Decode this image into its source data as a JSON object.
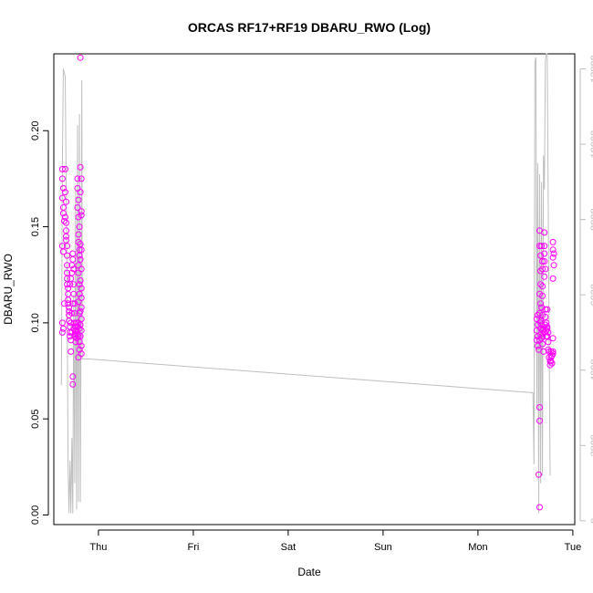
{
  "chart_data": {
    "type": "scatter",
    "title": "ORCAS RF17+RF19 DBARU_RWO (Log)",
    "xlabel": "Date",
    "ylabel": "DBARU_RWO",
    "x_ticks": [
      "Thu",
      "Fri",
      "Sat",
      "Sun",
      "Mon",
      "Tue"
    ],
    "ylim": [
      -0.005,
      0.24
    ],
    "y_ticks": [
      "0.00",
      "0.05",
      "0.10",
      "0.15",
      "0.20"
    ],
    "y_tick_values": [
      0,
      0.05,
      0.1,
      0.15,
      0.2
    ],
    "y2lim": [
      -100,
      12400
    ],
    "y2_ticks": [
      "0",
      "2000",
      "4000",
      "6000",
      "8000",
      "10000",
      "12000"
    ],
    "y2_tick_values": [
      0,
      2000,
      4000,
      6000,
      8000,
      10000,
      12000
    ],
    "x_units": "days since Thu 00:00",
    "xlim": [
      -0.47,
      5.02
    ],
    "colors": {
      "points": "#ff00ff",
      "altitude_line": "#bebebe",
      "axis": "#000000",
      "right_axis": "#bebebe"
    },
    "series": [
      {
        "kind": "points",
        "points": [
          [
            -0.38,
            0.18
          ],
          [
            -0.38,
            0.175
          ],
          [
            -0.37,
            0.17
          ],
          [
            -0.38,
            0.165
          ],
          [
            -0.37,
            0.16
          ],
          [
            -0.37,
            0.157
          ],
          [
            -0.36,
            0.153
          ],
          [
            -0.38,
            0.14
          ],
          [
            -0.37,
            0.137
          ],
          [
            -0.38,
            0.1
          ],
          [
            -0.37,
            0.097
          ],
          [
            -0.38,
            0.095
          ],
          [
            -0.36,
            0.11
          ],
          [
            -0.35,
            0.18
          ],
          [
            -0.35,
            0.168
          ],
          [
            -0.34,
            0.163
          ],
          [
            -0.35,
            0.155
          ],
          [
            -0.34,
            0.152
          ],
          [
            -0.34,
            0.148
          ],
          [
            -0.34,
            0.145
          ],
          [
            -0.34,
            0.143
          ],
          [
            -0.33,
            0.14
          ],
          [
            -0.33,
            0.135
          ],
          [
            -0.33,
            0.13
          ],
          [
            -0.33,
            0.126
          ],
          [
            -0.33,
            0.123
          ],
          [
            -0.33,
            0.12
          ],
          [
            -0.32,
            0.118
          ],
          [
            -0.32,
            0.115
          ],
          [
            -0.32,
            0.112
          ],
          [
            -0.32,
            0.11
          ],
          [
            -0.31,
            0.108
          ],
          [
            -0.31,
            0.106
          ],
          [
            -0.31,
            0.104
          ],
          [
            -0.31,
            0.101
          ],
          [
            -0.3,
            0.098
          ],
          [
            -0.3,
            0.095
          ],
          [
            -0.3,
            0.093
          ],
          [
            -0.29,
            0.091
          ],
          [
            -0.29,
            0.085
          ],
          [
            -0.3,
            0.12
          ],
          [
            -0.29,
            0.123
          ],
          [
            -0.28,
            0.126
          ],
          [
            -0.28,
            0.13
          ],
          [
            -0.27,
            0.133
          ],
          [
            -0.27,
            0.136
          ],
          [
            -0.26,
            0.128
          ],
          [
            -0.26,
            0.12
          ],
          [
            -0.26,
            0.115
          ],
          [
            -0.25,
            0.11
          ],
          [
            -0.25,
            0.105
          ],
          [
            -0.25,
            0.1
          ],
          [
            -0.24,
            0.098
          ],
          [
            -0.24,
            0.096
          ],
          [
            -0.24,
            0.094
          ],
          [
            -0.23,
            0.092
          ],
          [
            -0.27,
            0.072
          ],
          [
            -0.27,
            0.068
          ],
          [
            -0.28,
            0.095
          ],
          [
            -0.29,
            0.1
          ],
          [
            -0.28,
            0.105
          ],
          [
            -0.27,
            0.11
          ],
          [
            -0.26,
            0.097
          ],
          [
            -0.25,
            0.093
          ],
          [
            -0.24,
            0.09
          ],
          [
            -0.22,
            0.175
          ],
          [
            -0.22,
            0.17
          ],
          [
            -0.21,
            0.164
          ],
          [
            -0.22,
            0.16
          ],
          [
            -0.21,
            0.155
          ],
          [
            -0.2,
            0.15
          ],
          [
            -0.21,
            0.146
          ],
          [
            -0.21,
            0.142
          ],
          [
            -0.2,
            0.138
          ],
          [
            -0.2,
            0.135
          ],
          [
            -0.21,
            0.13
          ],
          [
            -0.21,
            0.126
          ],
          [
            -0.2,
            0.12
          ],
          [
            -0.2,
            0.115
          ],
          [
            -0.21,
            0.111
          ],
          [
            -0.2,
            0.105
          ],
          [
            -0.21,
            0.1
          ],
          [
            -0.2,
            0.097
          ],
          [
            -0.21,
            0.093
          ],
          [
            -0.2,
            0.09
          ],
          [
            -0.2,
            0.086
          ],
          [
            -0.21,
            0.082
          ],
          [
            -0.23,
            0.1
          ],
          [
            -0.22,
            0.098
          ],
          [
            -0.23,
            0.096
          ],
          [
            -0.22,
            0.094
          ],
          [
            -0.19,
            0.238
          ],
          [
            -0.19,
            0.181
          ],
          [
            -0.18,
            0.175
          ],
          [
            -0.19,
            0.168
          ],
          [
            -0.18,
            0.158
          ],
          [
            -0.18,
            0.156
          ],
          [
            -0.19,
            0.141
          ],
          [
            -0.18,
            0.138
          ],
          [
            -0.19,
            0.133
          ],
          [
            -0.18,
            0.128
          ],
          [
            -0.19,
            0.122
          ],
          [
            -0.18,
            0.118
          ],
          [
            -0.18,
            0.113
          ],
          [
            -0.18,
            0.108
          ],
          [
            -0.19,
            0.106
          ],
          [
            -0.18,
            0.102
          ],
          [
            -0.19,
            0.099
          ],
          [
            -0.18,
            0.096
          ],
          [
            -0.19,
            0.093
          ],
          [
            -0.18,
            0.088
          ],
          [
            -0.18,
            0.084
          ],
          [
            4.63,
            0.104
          ],
          [
            4.62,
            0.102
          ],
          [
            4.63,
            0.099
          ],
          [
            4.62,
            0.096
          ],
          [
            4.63,
            0.093
          ],
          [
            4.62,
            0.091
          ],
          [
            4.63,
            0.088
          ],
          [
            4.64,
            0.086
          ],
          [
            4.65,
            0.148
          ],
          [
            4.65,
            0.14
          ],
          [
            4.66,
            0.135
          ],
          [
            4.66,
            0.127
          ],
          [
            4.66,
            0.12
          ],
          [
            4.65,
            0.115
          ],
          [
            4.66,
            0.11
          ],
          [
            4.65,
            0.105
          ],
          [
            4.66,
            0.1
          ],
          [
            4.66,
            0.097
          ],
          [
            4.66,
            0.094
          ],
          [
            4.65,
            0.091
          ],
          [
            4.65,
            0.056
          ],
          [
            4.65,
            0.049
          ],
          [
            4.64,
            0.021
          ],
          [
            4.65,
            0.004
          ],
          [
            4.67,
            0.14
          ],
          [
            4.68,
            0.132
          ],
          [
            4.68,
            0.128
          ],
          [
            4.68,
            0.119
          ],
          [
            4.68,
            0.114
          ],
          [
            4.67,
            0.108
          ],
          [
            4.68,
            0.104
          ],
          [
            4.67,
            0.099
          ],
          [
            4.68,
            0.096
          ],
          [
            4.67,
            0.092
          ],
          [
            4.68,
            0.089
          ],
          [
            4.69,
            0.085
          ],
          [
            4.7,
            0.147
          ],
          [
            4.7,
            0.14
          ],
          [
            4.7,
            0.136
          ],
          [
            4.7,
            0.132
          ],
          [
            4.71,
            0.128
          ],
          [
            4.7,
            0.124
          ],
          [
            4.71,
            0.107
          ],
          [
            4.71,
            0.103
          ],
          [
            4.71,
            0.099
          ],
          [
            4.72,
            0.096
          ],
          [
            4.72,
            0.093
          ],
          [
            4.73,
            0.107
          ],
          [
            4.72,
            0.1
          ],
          [
            4.73,
            0.097
          ],
          [
            4.73,
            0.093
          ],
          [
            4.74,
            0.09
          ],
          [
            4.74,
            0.086
          ],
          [
            4.75,
            0.085
          ],
          [
            4.75,
            0.082
          ],
          [
            4.76,
            0.08
          ],
          [
            4.76,
            0.078
          ],
          [
            4.77,
            0.082
          ],
          [
            4.77,
            0.085
          ],
          [
            4.78,
            0.083
          ],
          [
            4.77,
            0.08
          ],
          [
            4.78,
            0.079
          ],
          [
            4.78,
            0.083
          ],
          [
            4.79,
            0.085
          ],
          [
            4.79,
            0.084
          ],
          [
            4.79,
            0.142
          ],
          [
            4.79,
            0.138
          ],
          [
            4.8,
            0.136
          ],
          [
            4.79,
            0.134
          ],
          [
            4.8,
            0.13
          ],
          [
            4.79,
            0.123
          ],
          [
            4.79,
            0.092
          ],
          [
            4.66,
            0.101
          ],
          [
            4.68,
            0.093
          ],
          [
            4.69,
            0.097
          ],
          [
            4.7,
            0.095
          ],
          [
            4.73,
            0.098
          ],
          [
            4.74,
            0.095
          ]
        ]
      },
      {
        "kind": "line",
        "axis": "right",
        "points": [
          [
            -0.39,
            3600
          ],
          [
            -0.38,
            9500
          ],
          [
            -0.37,
            12000
          ],
          [
            -0.35,
            11800
          ],
          [
            -0.34,
            9000
          ],
          [
            -0.33,
            6000
          ],
          [
            -0.32,
            1500
          ],
          [
            -0.31,
            200
          ],
          [
            -0.3,
            1600
          ],
          [
            -0.29,
            200
          ],
          [
            -0.28,
            2200
          ],
          [
            -0.27,
            200
          ],
          [
            -0.26,
            6000
          ],
          [
            -0.25,
            1000
          ],
          [
            -0.24,
            8800
          ],
          [
            -0.23,
            300
          ],
          [
            -0.22,
            10500
          ],
          [
            -0.21,
            500
          ],
          [
            -0.2,
            10800
          ],
          [
            -0.19,
            500
          ],
          [
            -0.18,
            8000
          ],
          [
            -0.175,
            11700
          ],
          [
            -0.17,
            4300
          ],
          [
            -0.11,
            4300
          ],
          [
            4.58,
            3400
          ],
          [
            4.59,
            1500
          ],
          [
            4.6,
            12200
          ],
          [
            4.61,
            12300
          ],
          [
            4.62,
            3000
          ],
          [
            4.63,
            9500
          ],
          [
            4.64,
            200
          ],
          [
            4.65,
            9200
          ],
          [
            4.66,
            1000
          ],
          [
            4.67,
            9000
          ],
          [
            4.68,
            1200
          ],
          [
            4.69,
            9700
          ],
          [
            4.7,
            8800
          ],
          [
            4.71,
            12200
          ],
          [
            4.72,
            12400
          ],
          [
            4.73,
            12400
          ],
          [
            4.75,
            5000
          ],
          [
            4.76,
            1200
          ]
        ]
      }
    ]
  }
}
